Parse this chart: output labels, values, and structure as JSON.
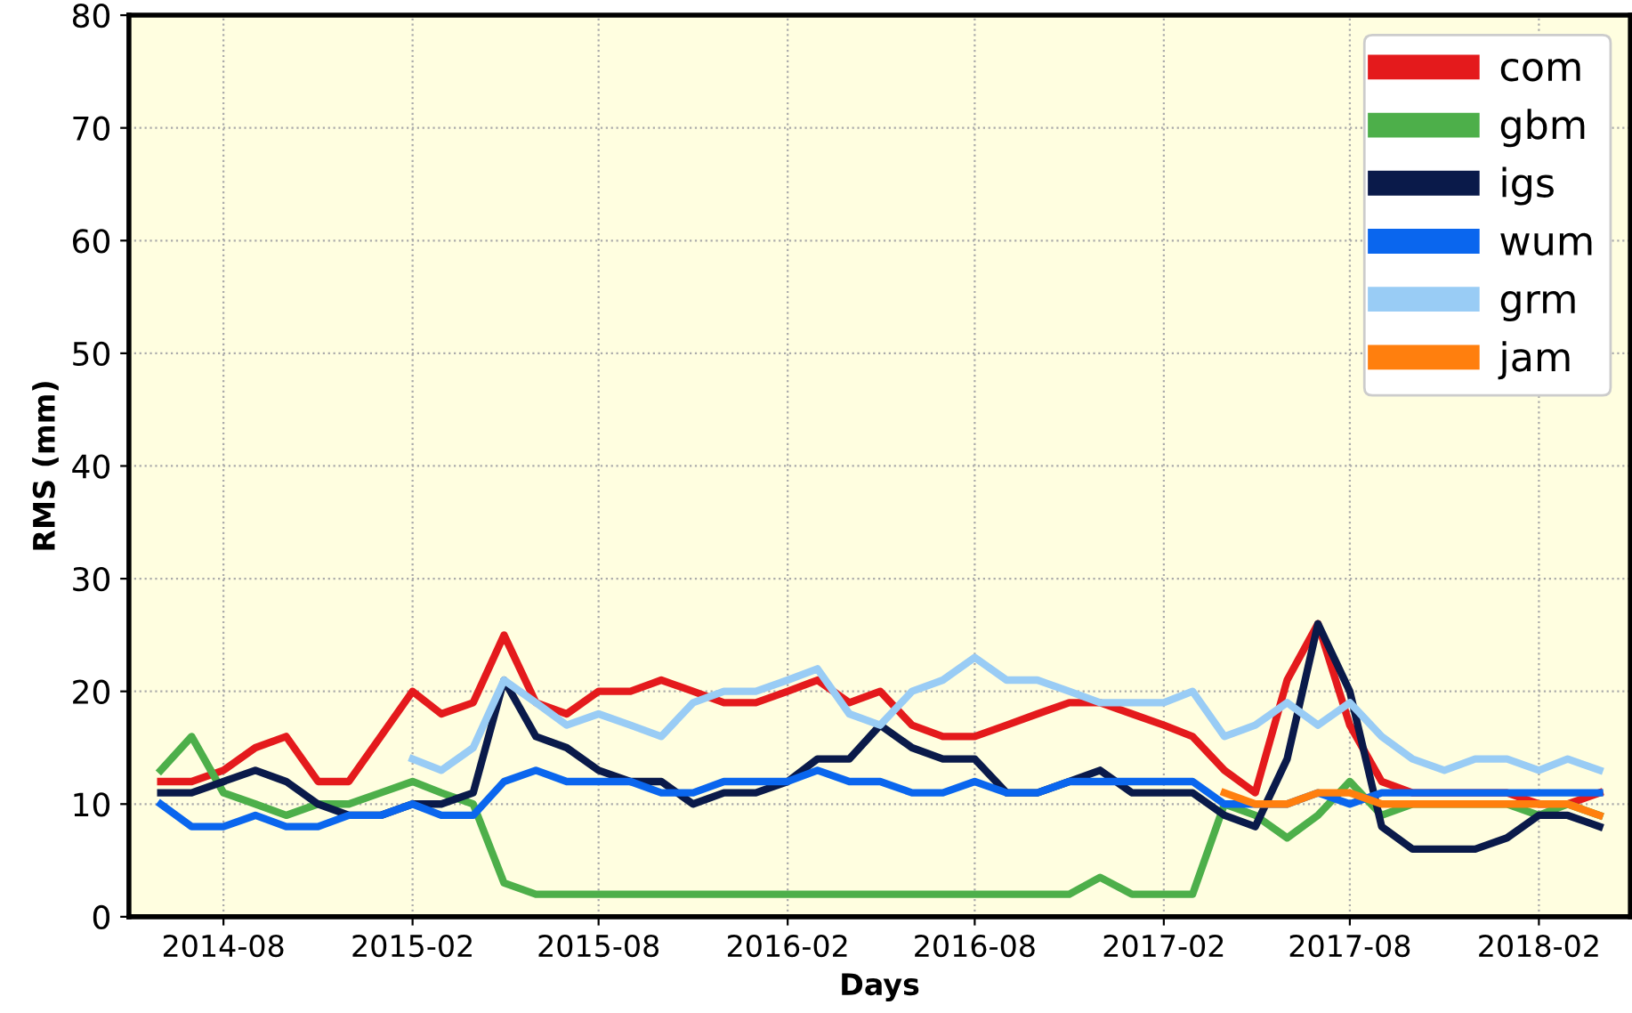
{
  "chart_data": {
    "type": "line",
    "xlabel": "Days",
    "ylabel": "RMS (mm)",
    "x": [
      "2014-06",
      "2014-07",
      "2014-08",
      "2014-09",
      "2014-10",
      "2014-11",
      "2014-12",
      "2015-01",
      "2015-02",
      "2015-03",
      "2015-04",
      "2015-05",
      "2015-06",
      "2015-07",
      "2015-08",
      "2015-09",
      "2015-10",
      "2015-11",
      "2015-12",
      "2016-01",
      "2016-02",
      "2016-03",
      "2016-04",
      "2016-05",
      "2016-06",
      "2016-07",
      "2016-08",
      "2016-09",
      "2016-10",
      "2016-11",
      "2016-12",
      "2017-01",
      "2017-02",
      "2017-03",
      "2017-04",
      "2017-05",
      "2017-06",
      "2017-07",
      "2017-08",
      "2017-09",
      "2017-10",
      "2017-11",
      "2017-12",
      "2018-01",
      "2018-02",
      "2018-03",
      "2018-04"
    ],
    "series": [
      {
        "name": "com",
        "color": "#e41a1c",
        "values": [
          12,
          12,
          13,
          15,
          16,
          12,
          12,
          16,
          20,
          18,
          19,
          25,
          19,
          18,
          20,
          20,
          21,
          20,
          19,
          19,
          20,
          21,
          19,
          20,
          17,
          16,
          16,
          17,
          18,
          19,
          19,
          18,
          17,
          16,
          13,
          11,
          21,
          26,
          17,
          12,
          11,
          11,
          11,
          11,
          10,
          10,
          11
        ]
      },
      {
        "name": "gbm",
        "color": "#4daf4a",
        "values": [
          13,
          16,
          11,
          10,
          9,
          10,
          10,
          11,
          12,
          11,
          10,
          3,
          2,
          2,
          2,
          2,
          2,
          2,
          2,
          2,
          2,
          2,
          2,
          2,
          2,
          2,
          2,
          2,
          2,
          2,
          3.5,
          2,
          2,
          2,
          10,
          9,
          7,
          9,
          12,
          9,
          10,
          10,
          10,
          10,
          9,
          10,
          9
        ]
      },
      {
        "name": "igs",
        "color": "#0a1a4a",
        "values": [
          11,
          11,
          12,
          13,
          12,
          10,
          9,
          9,
          10,
          10,
          11,
          21,
          16,
          15,
          13,
          12,
          12,
          10,
          11,
          11,
          12,
          14,
          14,
          17,
          15,
          14,
          14,
          11,
          11,
          12,
          13,
          11,
          11,
          11,
          9,
          8,
          14,
          26,
          20,
          8,
          6,
          6,
          6,
          7,
          9,
          9,
          8
        ]
      },
      {
        "name": "wum",
        "color": "#0a66ee",
        "values": [
          10,
          8,
          8,
          9,
          8,
          8,
          9,
          9,
          10,
          9,
          9,
          12,
          13,
          12,
          12,
          12,
          11,
          11,
          12,
          12,
          12,
          13,
          12,
          12,
          11,
          11,
          12,
          11,
          11,
          12,
          12,
          12,
          12,
          12,
          10,
          10,
          10,
          11,
          10,
          11,
          11,
          11,
          11,
          11,
          11,
          11,
          11
        ]
      },
      {
        "name": "grm",
        "color": "#99ccf5",
        "values": [
          null,
          null,
          null,
          null,
          null,
          null,
          null,
          null,
          14,
          13,
          15,
          21,
          19,
          17,
          18,
          17,
          16,
          19,
          20,
          20,
          21,
          22,
          18,
          17,
          20,
          21,
          23,
          21,
          21,
          20,
          19,
          19,
          19,
          20,
          16,
          17,
          19,
          17,
          19,
          16,
          14,
          13,
          14,
          14,
          13,
          14,
          13
        ]
      },
      {
        "name": "jam",
        "color": "#ff7f0e",
        "values": [
          null,
          null,
          null,
          null,
          null,
          null,
          null,
          null,
          null,
          null,
          null,
          null,
          null,
          null,
          null,
          null,
          null,
          null,
          null,
          null,
          null,
          null,
          null,
          null,
          null,
          null,
          null,
          null,
          null,
          null,
          null,
          null,
          null,
          null,
          11,
          10,
          10,
          11,
          11,
          10,
          10,
          10,
          10,
          10,
          10,
          10,
          9
        ]
      }
    ],
    "xlim": [
      "2014-05-01",
      "2018-05-01"
    ],
    "xticks": [
      {
        "value": "2014-08",
        "label": "2014-08"
      },
      {
        "value": "2015-02",
        "label": "2015-02"
      },
      {
        "value": "2015-08",
        "label": "2015-08"
      },
      {
        "value": "2016-02",
        "label": "2016-02"
      },
      {
        "value": "2016-08",
        "label": "2016-08"
      },
      {
        "value": "2017-02",
        "label": "2017-02"
      },
      {
        "value": "2017-08",
        "label": "2017-08"
      },
      {
        "value": "2018-02",
        "label": "2018-02"
      }
    ],
    "ylim": [
      0,
      80
    ],
    "yticks": [
      0,
      10,
      20,
      30,
      40,
      50,
      60,
      70,
      80
    ],
    "grid": true,
    "legend": "top right",
    "marker": "none",
    "line_style": "solid"
  }
}
